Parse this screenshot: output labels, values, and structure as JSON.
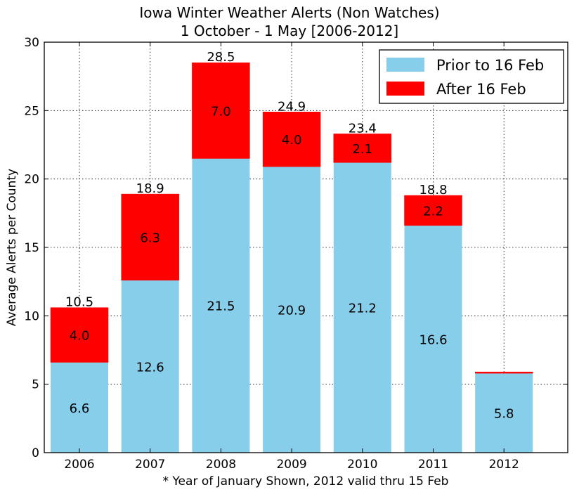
{
  "chart_data": {
    "type": "bar",
    "stacked": true,
    "title": "Iowa Winter Weather Alerts (Non Watches)",
    "subtitle": "1 October - 1 May [2006-2012]",
    "xlabel": "* Year of January Shown, 2012 valid thru 15 Feb",
    "ylabel": "Average Alerts per County",
    "ylim": [
      0,
      30
    ],
    "yticks": [
      0,
      5,
      10,
      15,
      20,
      25,
      30
    ],
    "grid": true,
    "legend_position": "top-right",
    "categories": [
      "2006",
      "2007",
      "2008",
      "2009",
      "2010",
      "2011",
      "2012"
    ],
    "series": [
      {
        "name": "Prior to 16 Feb",
        "color": "#87ceeb",
        "values": [
          6.6,
          12.6,
          21.5,
          20.9,
          21.2,
          16.6,
          5.8
        ],
        "labels": [
          "6.6",
          "12.6",
          "21.5",
          "20.9",
          "21.2",
          "16.6",
          "5.8"
        ]
      },
      {
        "name": "After 16 Feb",
        "color": "#ff0000",
        "values": [
          4.0,
          6.3,
          7.0,
          4.0,
          2.1,
          2.2,
          0.1
        ],
        "labels": [
          "4.0",
          "6.3",
          "7.0",
          "4.0",
          "2.1",
          "2.2",
          ""
        ]
      }
    ],
    "totals": [
      10.5,
      18.9,
      28.5,
      24.9,
      23.4,
      18.8,
      null
    ],
    "total_labels": [
      "10.5",
      "18.9",
      "28.5",
      "24.9",
      "23.4",
      "18.8",
      ""
    ]
  }
}
